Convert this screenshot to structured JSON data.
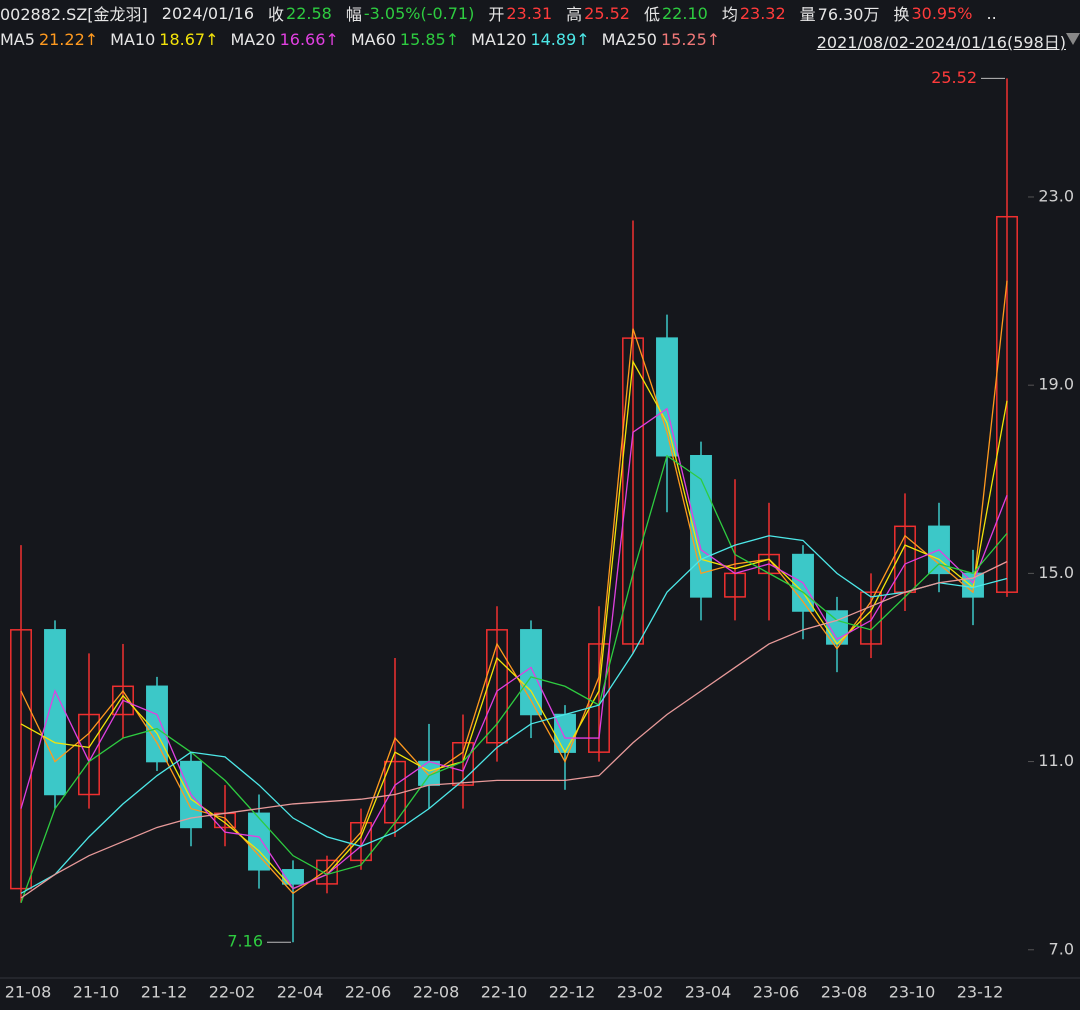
{
  "header": {
    "items": [
      {
        "label": "002882.SZ[金龙羽]",
        "color": "#e6e6e6"
      },
      {
        "label": "2024/01/16",
        "color": "#e6e6e6"
      },
      {
        "label": "收",
        "value": "22.58",
        "color": "#2ecc40"
      },
      {
        "label": "幅",
        "value": "-3.05%(-0.71)",
        "color": "#2ecc40"
      },
      {
        "label": "开",
        "value": "23.31",
        "color": "#ff3b3b"
      },
      {
        "label": "高",
        "value": "25.52",
        "color": "#ff3b3b"
      },
      {
        "label": "低",
        "value": "22.10",
        "color": "#2ecc40"
      },
      {
        "label": "均",
        "value": "23.32",
        "color": "#ff3b3b"
      },
      {
        "label": "量",
        "value": "76.30万",
        "color": "#e6e6e6"
      },
      {
        "label": "换",
        "value": "30.95%",
        "color": "#ff3b3b"
      },
      {
        "label": ".."
      }
    ],
    "range": "2021/08/02-2024/01/16(598日)"
  },
  "chart_data": {
    "type": "candlestick",
    "categories": [
      "21-08",
      null,
      "21-10",
      null,
      "21-12",
      null,
      "22-02",
      null,
      "22-04",
      null,
      "22-06",
      null,
      "22-08",
      null,
      "22-10",
      null,
      "22-12",
      null,
      "23-02",
      null,
      "23-04",
      null,
      "23-06",
      null,
      "23-08",
      null,
      "23-10",
      null,
      "23-12",
      null
    ],
    "candles": {
      "open": [
        8.3,
        13.8,
        10.3,
        12.0,
        12.6,
        11.0,
        9.6,
        9.9,
        8.7,
        8.4,
        8.9,
        9.7,
        11.0,
        10.5,
        11.4,
        13.8,
        12.0,
        11.2,
        13.5,
        20.0,
        17.5,
        14.5,
        15.0,
        15.4,
        14.2,
        13.5,
        14.6,
        16.0,
        15.0,
        14.6
      ],
      "high": [
        15.6,
        14.0,
        13.3,
        13.5,
        12.8,
        11.2,
        10.5,
        10.3,
        8.9,
        9.0,
        10.0,
        13.2,
        11.8,
        12.0,
        14.3,
        14.0,
        12.2,
        14.3,
        22.5,
        20.5,
        17.8,
        17.0,
        16.5,
        15.6,
        14.5,
        15.0,
        16.7,
        16.5,
        15.5,
        25.52
      ],
      "low": [
        8.0,
        10.0,
        10.0,
        11.5,
        10.8,
        9.2,
        9.2,
        8.3,
        7.16,
        8.2,
        8.7,
        9.4,
        10.0,
        10.0,
        11.0,
        11.5,
        10.4,
        11.0,
        13.3,
        16.3,
        14.0,
        14.0,
        14.0,
        13.6,
        12.9,
        13.2,
        14.2,
        14.6,
        13.9,
        14.5
      ],
      "close": [
        13.8,
        10.3,
        12.0,
        12.6,
        11.0,
        9.6,
        9.9,
        8.7,
        8.4,
        8.9,
        9.7,
        11.0,
        10.5,
        11.4,
        13.8,
        12.0,
        11.2,
        13.5,
        20.0,
        17.5,
        14.5,
        15.0,
        15.4,
        14.2,
        13.5,
        14.6,
        16.0,
        15.0,
        14.5,
        22.58
      ],
      "up_color": "#f03030",
      "down_color": "#3cc8c8"
    },
    "series": [
      {
        "name": "MA5",
        "legend_label": "21.22↑",
        "color": "#ff9a1f",
        "values": [
          12.5,
          11.0,
          11.6,
          12.5,
          11.4,
          10.0,
          9.8,
          9.0,
          8.2,
          8.7,
          9.5,
          11.5,
          10.7,
          11.2,
          13.5,
          12.3,
          11.0,
          12.8,
          20.2,
          18.0,
          15.0,
          15.2,
          15.3,
          14.4,
          13.4,
          14.4,
          15.8,
          15.2,
          14.6,
          21.22
        ]
      },
      {
        "name": "MA10",
        "legend_label": "18.67↑",
        "color": "#f2e30a",
        "values": [
          11.8,
          11.4,
          11.3,
          12.4,
          11.6,
          10.2,
          9.7,
          9.1,
          8.3,
          8.6,
          9.4,
          11.2,
          10.8,
          11.0,
          13.2,
          12.5,
          11.2,
          12.5,
          19.5,
          18.2,
          15.3,
          15.1,
          15.3,
          14.6,
          13.5,
          14.2,
          15.6,
          15.3,
          14.7,
          18.67
        ]
      },
      {
        "name": "MA20",
        "legend_label": "16.66↑",
        "color": "#e040e0",
        "values": [
          10.0,
          12.5,
          11.0,
          12.3,
          12.0,
          10.3,
          9.5,
          9.4,
          8.3,
          8.6,
          9.2,
          10.5,
          11.0,
          10.8,
          12.5,
          13.0,
          11.5,
          11.5,
          18.0,
          18.5,
          15.5,
          15.0,
          15.2,
          14.8,
          13.6,
          14.0,
          15.2,
          15.5,
          14.8,
          16.66
        ]
      },
      {
        "name": "MA60",
        "legend_label": "15.85↑",
        "color": "#2ecc40",
        "values": [
          8.0,
          10.0,
          11.0,
          11.5,
          11.7,
          11.2,
          10.6,
          9.8,
          9.0,
          8.6,
          8.8,
          9.7,
          10.7,
          11.0,
          11.8,
          12.8,
          12.6,
          12.2,
          15.0,
          17.5,
          17.0,
          15.4,
          15.0,
          14.6,
          14.0,
          13.8,
          14.5,
          15.2,
          15.0,
          15.85
        ]
      },
      {
        "name": "MA120",
        "legend_label": "14.89↑",
        "color": "#4de8e8",
        "values": [
          8.2,
          8.6,
          9.4,
          10.1,
          10.7,
          11.2,
          11.1,
          10.5,
          9.8,
          9.4,
          9.2,
          9.5,
          10.0,
          10.6,
          11.3,
          11.8,
          12.0,
          12.2,
          13.3,
          14.6,
          15.3,
          15.6,
          15.8,
          15.7,
          15.0,
          14.5,
          14.6,
          14.8,
          14.7,
          14.89
        ]
      },
      {
        "name": "MA250",
        "legend_label": "15.25↑",
        "color": "#f07878",
        "line_color": "#e89a9a",
        "values": [
          8.1,
          8.6,
          9.0,
          9.3,
          9.6,
          9.8,
          9.9,
          10.0,
          10.1,
          10.15,
          10.2,
          10.3,
          10.5,
          10.55,
          10.6,
          10.6,
          10.6,
          10.7,
          11.4,
          12.0,
          12.5,
          13.0,
          13.5,
          13.8,
          14.0,
          14.3,
          14.6,
          14.8,
          14.9,
          15.25
        ]
      }
    ],
    "ylim": [
      6.4,
      26.23
    ],
    "yticks": [
      {
        "value": 7,
        "label": "7.0"
      },
      {
        "value": 11,
        "label": "11.0"
      },
      {
        "value": 15,
        "label": "15.0"
      },
      {
        "value": 19,
        "label": "19.0"
      },
      {
        "value": 23,
        "label": "23.0"
      }
    ],
    "annotations": [
      {
        "text": "25.52",
        "color": "#ff3b3b",
        "index": 29,
        "at": "high"
      },
      {
        "text": "7.16",
        "color": "#2ecc40",
        "index": 8,
        "at": "low"
      }
    ]
  }
}
